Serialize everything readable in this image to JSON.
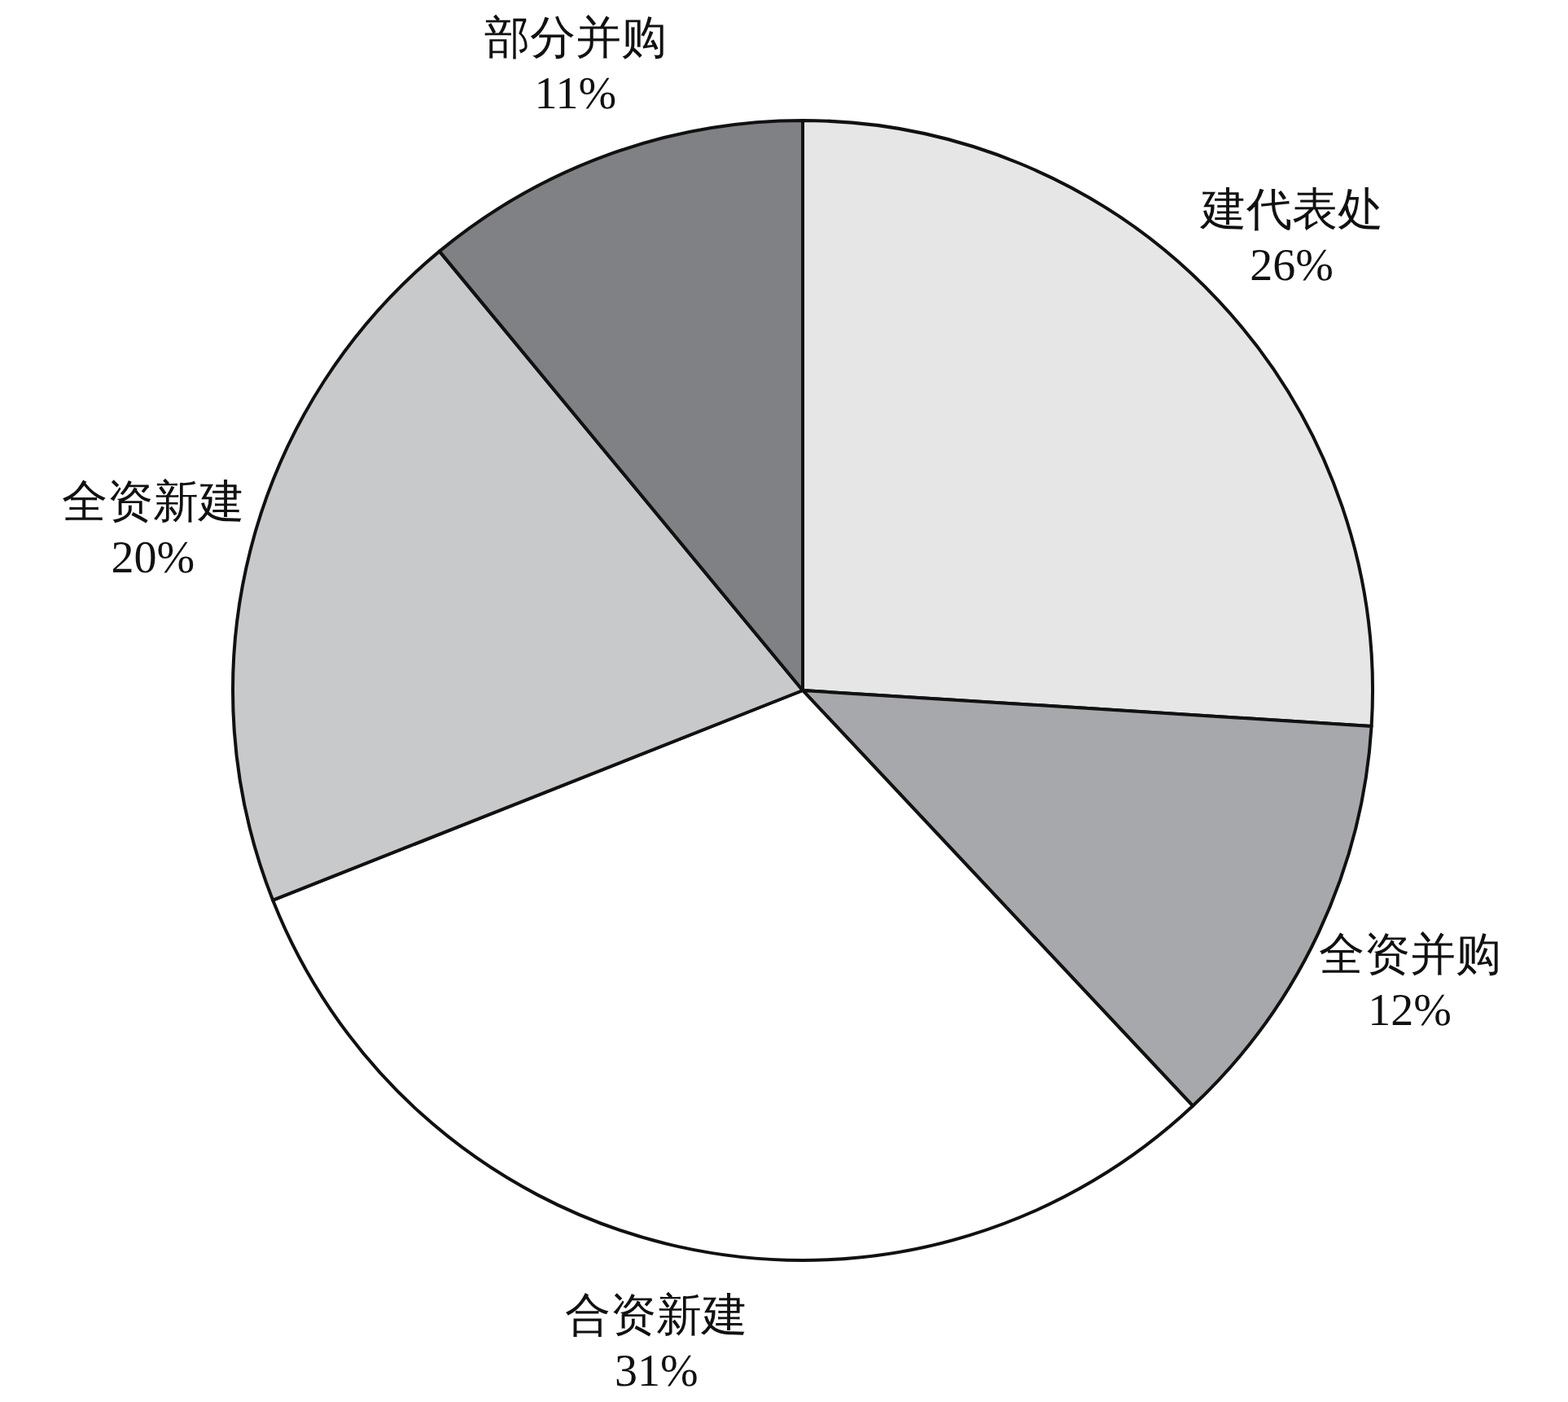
{
  "chart_data": {
    "type": "pie",
    "categories": [
      "建代表处",
      "全资并购",
      "合资新建",
      "全资新建",
      "部分并购"
    ],
    "values": [
      26,
      12,
      31,
      20,
      11
    ],
    "colors": [
      "#e6e6e7",
      "#a7a8ab",
      "#ffffff",
      "#c8c9cb",
      "#808184"
    ],
    "value_labels": [
      "26%",
      "12%",
      "31%",
      "20%",
      "11%"
    ]
  }
}
